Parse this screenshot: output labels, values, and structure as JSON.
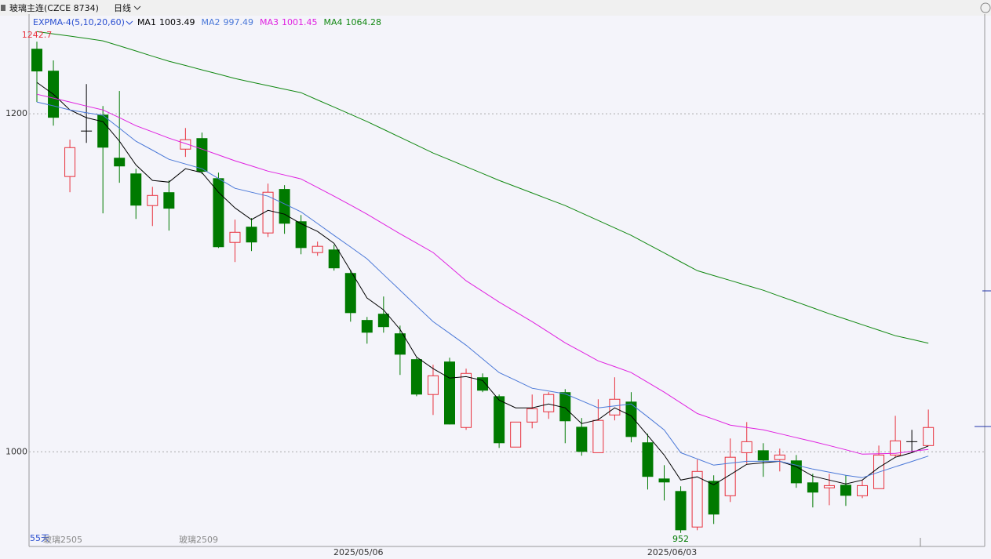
{
  "header": {
    "title": "玻璃主连(CZCE 8734)",
    "period": "日线"
  },
  "chart_data": {
    "type": "candlestick",
    "indicator": "EXPMA-4(5,10,20,60)",
    "categories": [
      null,
      null,
      null,
      null,
      null,
      null,
      null,
      null,
      null,
      null,
      null,
      null,
      null,
      null,
      null,
      null,
      null,
      null,
      null,
      "2025/05/06",
      null,
      null,
      null,
      null,
      null,
      null,
      null,
      null,
      null,
      null,
      null,
      null,
      null,
      null,
      null,
      null,
      null,
      null,
      "2025/06/03",
      null,
      null,
      null,
      null,
      null,
      null,
      null,
      null,
      null,
      null,
      null,
      null,
      null,
      null,
      null,
      null
    ],
    "open": [
      1238.5,
      1225.5,
      1162.9,
      1189.8,
      1199.5,
      1174.0,
      1164.7,
      1145.7,
      1153.6,
      1179.1,
      1185.6,
      1161.9,
      1123.9,
      1133.2,
      1129.5,
      1155.5,
      1136.4,
      1117.9,
      1119.7,
      1105.8,
      1078.0,
      1081.7,
      1070.1,
      1054.8,
      1033.9,
      1053.4,
      1014.4,
      1044.1,
      1032.9,
      1002.8,
      1017.6,
      1023.7,
      1035.3,
      1014.8,
      999.5,
      1021.8,
      1029.7,
      1005.6,
      984.2,
      976.8,
      955.5,
      982.8,
      974.0,
      999.5,
      1000.9,
      995.4,
      994.9,
      981.9,
      978.7,
      980.5,
      974.0,
      978.2,
      998.1,
      1006.0,
      1003.7
    ],
    "high": [
      1242.7,
      1231.6,
      1184.7,
      1217.6,
      1204.6,
      1213.5,
      1167.5,
      1156.8,
      1160.6,
      1191.6,
      1188.9,
      1165.2,
      1137.4,
      1138.3,
      1158.7,
      1157.8,
      1140.1,
      1124.4,
      1122.5,
      1107.7,
      1079.8,
      1091.9,
      1074.7,
      1055.7,
      1051.5,
      1055.7,
      1049.2,
      1046.4,
      1033.9,
      1017.6,
      1033.9,
      1035.3,
      1037.1,
      1020.0,
      1031.1,
      1044.1,
      1035.3,
      1010.7,
      992.1,
      979.6,
      995.4,
      986.1,
      1007.9,
      1017.6,
      1005.1,
      1001.9,
      998.1,
      987.0,
      987.0,
      986.1,
      983.3,
      1003.7,
      1021.3,
      1013.0,
      1025
    ],
    "low": [
      1207.0,
      1193.0,
      1153.6,
      1182.8,
      1141.1,
      1159.2,
      1137.8,
      1133.6,
      1130.9,
      1174.5,
      1164.3,
      1120.6,
      1112.3,
      1118.8,
      1127.1,
      1129.0,
      1116.9,
      1116.0,
      1107.2,
      1077.0,
      1064.0,
      1070.5,
      1045.5,
      1032.9,
      1021.8,
      1016.2,
      1013.0,
      1035.3,
      1002.3,
      1002.8,
      1013.9,
      1019.5,
      1005.1,
      997.7,
      999.5,
      1018.6,
      1005.6,
      977.7,
      971.2,
      952,
      953.6,
      957.3,
      970.3,
      993.0,
      985.2,
      988.4,
      978.7,
      967.1,
      968.4,
      968.0,
      972.6,
      978.2,
      996.8,
      999.5,
      1003.7
    ],
    "close": [
      1225.1,
      1197.7,
      1180.0,
      1189.8,
      1180.0,
      1168.9,
      1145.7,
      1151.7,
      1143.9,
      1184.7,
      1165.7,
      1121.1,
      1129.9,
      1123.9,
      1153.6,
      1135.0,
      1120.6,
      1121.6,
      1108.6,
      1082.1,
      1070.5,
      1073.8,
      1057.5,
      1033.9,
      1045.0,
      1016.2,
      1046.4,
      1036.2,
      1005.1,
      1017.6,
      1025.5,
      1033.9,
      1018.1,
      1000.0,
      1018.6,
      1031.1,
      1008.8,
      985.2,
      981.9,
      953.6,
      988.4,
      962.9,
      996.8,
      1006.0,
      994.9,
      998.1,
      981.4,
      975.9,
      980.0,
      974.0,
      980.0,
      998.1,
      1006.5,
      1006.0,
      1014.4
    ],
    "up_color": "#e8303c",
    "down_color": "#007a00",
    "doji_color": "#000000",
    "series": [
      {
        "name": "MA1",
        "color": "#000000",
        "values": [
          1218.6,
          1211.6,
          1202.3,
          1197.7,
          1195.4,
          1183.8,
          1169.8,
          1160.6,
          1159.6,
          1167.5,
          1165.2,
          1153.6,
          1144.3,
          1137.4,
          1142.9,
          1140.6,
          1135.0,
          1130.4,
          1123.4,
          1107.2,
          1091.0,
          1084.0,
          1072.4,
          1056.1,
          1049.2,
          1043.6,
          1044.5,
          1042.2,
          1030.6,
          1026.0,
          1026.0,
          1028.3,
          1026.0,
          1016.7,
          1019.0,
          1026.0,
          1021.3,
          1009.7,
          998.1,
          983.3,
          985.2,
          980.5,
          986.5,
          992.6,
          993.5,
          994.4,
          991.2,
          985.6,
          983.3,
          981.0,
          983.3,
          990.7,
          996.8,
          999.5,
          1003.49
        ]
      },
      {
        "name": "MA2",
        "color": "#4a78d8",
        "values": [
          1207.0,
          1204.7,
          1202.3,
          1200.7,
          1199.1,
          1191.5,
          1183.8,
          1178.5,
          1173.1,
          1170.3,
          1167.5,
          1161.7,
          1155.9,
          1153.6,
          1151.3,
          1146.7,
          1142.0,
          1135.1,
          1128.1,
          1121.2,
          1114.2,
          1104.9,
          1095.6,
          1086.3,
          1077.0,
          1070.1,
          1063.1,
          1055.0,
          1046.9,
          1042.3,
          1037.6,
          1036.0,
          1034.3,
          1030.2,
          1026.0,
          1027.2,
          1028.3,
          1020.7,
          1013.0,
          999.5,
          995.8,
          992.1,
          993.3,
          994.4,
          994.4,
          994.4,
          992.1,
          989.8,
          988.0,
          986.1,
          984.7,
          988.0,
          991.2,
          994.3,
          997.49
        ]
      },
      {
        "name": "MA3",
        "color": "#e020e0",
        "values": [
          1211.6,
          1209.3,
          1207.0,
          1204.6,
          1202.3,
          1197.7,
          1193.0,
          1189.3,
          1185.6,
          1182.4,
          1179.1,
          1175.7,
          1172.2,
          1169.2,
          1166.1,
          1163.8,
          1161.5,
          1156.4,
          1151.3,
          1146.0,
          1140.6,
          1134.8,
          1129.0,
          1123.5,
          1117.9,
          1109.6,
          1101.2,
          1094.9,
          1088.6,
          1082.8,
          1077.0,
          1070.8,
          1064.5,
          1059.2,
          1053.8,
          1050.4,
          1046.9,
          1041.1,
          1035.3,
          1029.0,
          1022.7,
          1019.3,
          1015.8,
          1014.4,
          1013.0,
          1010.7,
          1008.4,
          1006.1,
          1003.7,
          1001.2,
          998.6,
          998.9,
          999.1,
          1000.3,
          1001.45
        ]
      },
      {
        "name": "MA4",
        "color": "#118811",
        "values": [
          1248.7,
          1247.3,
          1246.0,
          1244.6,
          1243.2,
          1240.2,
          1237.2,
          1234.1,
          1231.1,
          1228.6,
          1226.0,
          1223.5,
          1220.9,
          1218.8,
          1216.7,
          1214.6,
          1212.5,
          1208.2,
          1204.0,
          1199.7,
          1195.4,
          1190.8,
          1186.1,
          1181.5,
          1176.8,
          1172.8,
          1168.7,
          1164.7,
          1160.6,
          1156.9,
          1153.2,
          1149.4,
          1145.7,
          1141.3,
          1136.9,
          1132.5,
          1128.1,
          1122.9,
          1117.7,
          1112.4,
          1107.2,
          1104.3,
          1101.4,
          1098.5,
          1095.6,
          1092.1,
          1088.7,
          1085.2,
          1081.7,
          1078.5,
          1075.2,
          1072.0,
          1068.7,
          1066.5,
          1064.28
        ]
      }
    ],
    "ylim": [
      944,
      1259
    ],
    "yticks": [
      1000,
      1200
    ],
    "grid": true,
    "count_label": "55天",
    "contract_labels": [
      "玻璃2505",
      "玻璃2509"
    ]
  }
}
